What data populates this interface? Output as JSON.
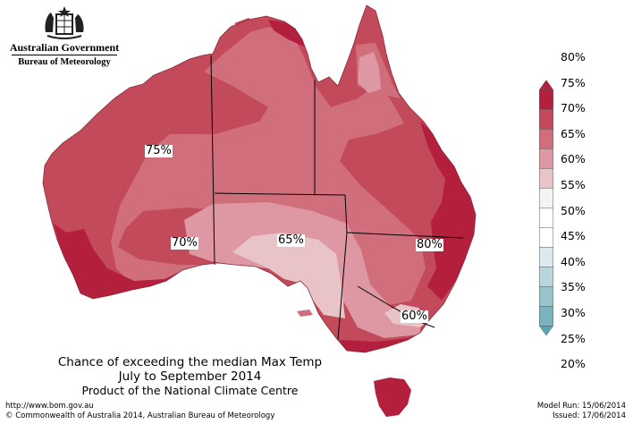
{
  "header": {
    "government_name": "Australian Government",
    "agency_name": "Bureau of Meteorology"
  },
  "map": {
    "contour_labels": [
      "75%",
      "70%",
      "65%",
      "80%",
      "60%"
    ]
  },
  "legend": {
    "ticks": [
      "80%",
      "75%",
      "70%",
      "65%",
      "60%",
      "55%",
      "50%",
      "45%",
      "40%",
      "35%",
      "30%",
      "25%",
      "20%"
    ],
    "colors": [
      "#b31f3d",
      "#c24a5a",
      "#d16e7c",
      "#dd98a3",
      "#e8c3c8",
      "#f3f3f3",
      "#ffffff",
      "#ffffff",
      "#dbe9ec",
      "#b9d6dc",
      "#98c4cd",
      "#78b3bf",
      "#5aa5b5"
    ]
  },
  "title": {
    "line1": "Chance of exceeding the median Max Temp",
    "line2": "July to September 2014",
    "line3": "Product of the National Climate Centre"
  },
  "footer": {
    "url": "http://www.bom.gov.au",
    "copyright": "©  Commonwealth of Australia 2014, Australian Bureau of Meteorology",
    "model_run": "Model Run: 15/06/2014",
    "issued": "Issued: 17/06/2014"
  },
  "colors": {
    "p80": "#b31f3d",
    "p75": "#c24a5a",
    "p70": "#d16e7c",
    "p65": "#dd98a3",
    "p60": "#e8c3c8"
  }
}
